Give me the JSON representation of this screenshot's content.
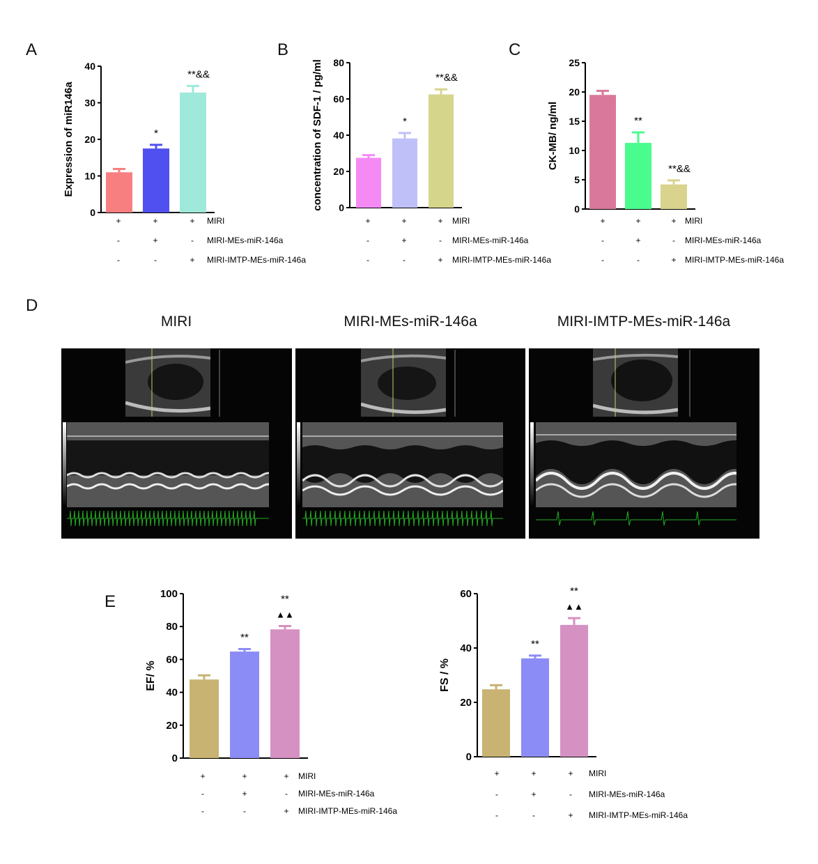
{
  "colors": {
    "axis": "#000000",
    "A": [
      "#f77f7f",
      "#5050f0",
      "#9ee9d9"
    ],
    "B": [
      "#f58af5",
      "#c0c0f8",
      "#d6d58c"
    ],
    "C": [
      "#d9789a",
      "#4afc8e",
      "#d9d38e"
    ],
    "E": [
      "#c8b373",
      "#8c8cf6",
      "#d591c2"
    ]
  },
  "panel_letters": {
    "A": "A",
    "B": "B",
    "C": "C",
    "D": "D",
    "E": "E"
  },
  "conditions": {
    "row_labels": [
      "MIRI",
      "MIRI-MEs-miR-146a",
      "MIRI-IMTP-MEs-miR-146a"
    ],
    "signs": [
      [
        "+",
        "+",
        "+"
      ],
      [
        "-",
        "+",
        "-"
      ],
      [
        "-",
        "-",
        "+"
      ]
    ]
  },
  "echo_panel": {
    "titles": [
      "MIRI",
      "MIRI-MEs-miR-146a",
      "MIRI-IMTP-MEs-miR-146a"
    ]
  },
  "chart_data": [
    {
      "panel": "A",
      "type": "bar",
      "ylabel": "Expression of miR146a",
      "ylim": [
        0,
        40
      ],
      "yticks": [
        0,
        10,
        20,
        30,
        40
      ],
      "values": [
        11,
        17.5,
        32.8
      ],
      "errors": [
        0.9,
        1.0,
        1.8
      ],
      "annotations": [
        "",
        "*",
        "**&&"
      ]
    },
    {
      "panel": "B",
      "type": "bar",
      "ylabel": "concentration of SDF-1 / pg/ml",
      "ylim": [
        0,
        80
      ],
      "yticks": [
        0,
        20,
        40,
        60,
        80
      ],
      "values": [
        27.5,
        38.2,
        62.5
      ],
      "errors": [
        1.5,
        3.0,
        2.8
      ],
      "annotations": [
        "",
        "*",
        "**&&"
      ]
    },
    {
      "panel": "C",
      "type": "bar",
      "ylabel": "CK-MB/ ng/ml",
      "ylim": [
        0,
        25
      ],
      "yticks": [
        0,
        5,
        10,
        15,
        20,
        25
      ],
      "values": [
        19.5,
        11.3,
        4.2
      ],
      "errors": [
        0.7,
        1.8,
        0.7
      ],
      "annotations": [
        "",
        "**",
        "**&&"
      ]
    },
    {
      "panel": "E1",
      "type": "bar",
      "ylabel": "EF/ %",
      "ylim": [
        0,
        100
      ],
      "yticks": [
        0,
        20,
        40,
        60,
        80,
        100
      ],
      "values": [
        47.8,
        64.8,
        78.3
      ],
      "errors": [
        2.5,
        1.5,
        2.0
      ],
      "annotations": [
        "",
        "**",
        "**\n▲▲"
      ]
    },
    {
      "panel": "E2",
      "type": "bar",
      "ylabel": "FS / %",
      "ylim": [
        0,
        60
      ],
      "yticks": [
        0,
        20,
        40,
        60
      ],
      "values": [
        24.8,
        36.2,
        48.5
      ],
      "errors": [
        1.5,
        1.0,
        2.5
      ],
      "annotations": [
        "",
        "**",
        "**\n▲▲"
      ]
    }
  ]
}
